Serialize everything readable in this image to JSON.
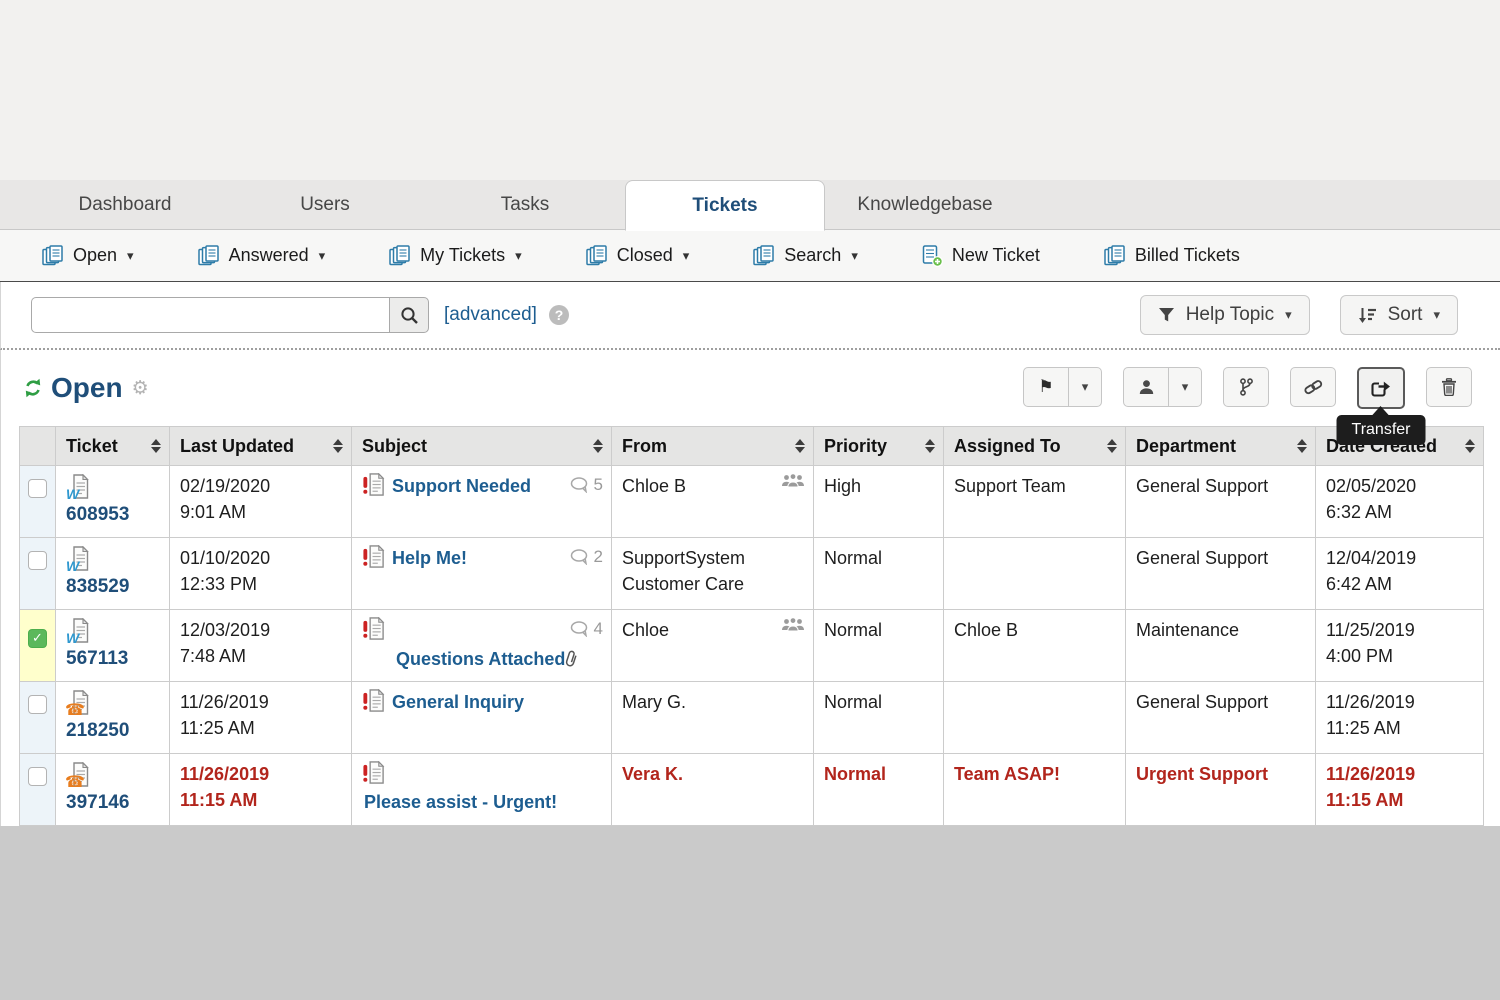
{
  "tabs": [
    {
      "label": "Dashboard",
      "active": false
    },
    {
      "label": "Users",
      "active": false
    },
    {
      "label": "Tasks",
      "active": false
    },
    {
      "label": "Tickets",
      "active": true
    },
    {
      "label": "Knowledgebase",
      "active": false
    }
  ],
  "nav": {
    "items": [
      {
        "label": "Open",
        "icon": "tickets-stack-icon",
        "dropdown": true
      },
      {
        "label": "Answered",
        "icon": "tickets-stack-icon",
        "dropdown": true
      },
      {
        "label": "My Tickets",
        "icon": "tickets-stack-icon",
        "dropdown": true
      },
      {
        "label": "Closed",
        "icon": "tickets-stack-icon",
        "dropdown": true
      },
      {
        "label": "Search",
        "icon": "tickets-stack-icon",
        "dropdown": true
      },
      {
        "label": "New Ticket",
        "icon": "new-ticket-icon",
        "dropdown": false
      },
      {
        "label": "Billed Tickets",
        "icon": "tickets-stack-icon",
        "dropdown": false
      }
    ]
  },
  "search": {
    "value": "",
    "placeholder": "",
    "advanced_label": "[advanced]",
    "help_icon": "?",
    "filter_button": "Help Topic",
    "sort_button": "Sort"
  },
  "view_header": {
    "title": "Open",
    "tooltip": "Transfer",
    "toolbar_icons": [
      "flag-icon",
      "person-icon",
      "merge-icon",
      "link-icon",
      "transfer-icon",
      "trash-icon"
    ]
  },
  "table": {
    "columns": [
      "Ticket",
      "Last Updated",
      "Subject",
      "From",
      "Priority",
      "Assigned To",
      "Department",
      "Date Created"
    ],
    "rows": [
      {
        "checked": false,
        "highlight": false,
        "id": "608953",
        "source": "web",
        "updated_date": "02/19/2020",
        "updated_time": "9:01 AM",
        "subject": "Support Needed",
        "thread_count": "5",
        "has_attachment": false,
        "subject_wraps": false,
        "from": "Chloe B",
        "from_is_group": true,
        "priority": "High",
        "assigned_to": "Support Team",
        "department": "General Support",
        "created_date": "02/05/2020",
        "created_time": "6:32 AM",
        "overdue": false
      },
      {
        "checked": false,
        "highlight": false,
        "id": "838529",
        "source": "web",
        "updated_date": "01/10/2020",
        "updated_time": "12:33 PM",
        "subject": "Help Me!",
        "thread_count": "2",
        "has_attachment": false,
        "subject_wraps": false,
        "from": "SupportSystem Customer Care",
        "from_is_group": false,
        "priority": "Normal",
        "assigned_to": "",
        "department": "General Support",
        "created_date": "12/04/2019",
        "created_time": "6:42 AM",
        "overdue": false
      },
      {
        "checked": true,
        "highlight": true,
        "id": "567113",
        "source": "web",
        "updated_date": "12/03/2019",
        "updated_time": "7:48 AM",
        "subject": "Questions Attached",
        "thread_count": "4",
        "has_attachment": true,
        "subject_wraps": true,
        "from": "Chloe",
        "from_is_group": true,
        "priority": "Normal",
        "assigned_to": "Chloe B",
        "department": "Maintenance",
        "created_date": "11/25/2019",
        "created_time": "4:00 PM",
        "overdue": false
      },
      {
        "checked": false,
        "highlight": false,
        "id": "218250",
        "source": "phone",
        "updated_date": "11/26/2019",
        "updated_time": "11:25 AM",
        "subject": "General Inquiry",
        "thread_count": "",
        "has_attachment": false,
        "subject_wraps": false,
        "from": "Mary G.",
        "from_is_group": false,
        "priority": "Normal",
        "assigned_to": "",
        "department": "General Support",
        "created_date": "11/26/2019",
        "created_time": "11:25 AM",
        "overdue": false
      },
      {
        "checked": false,
        "highlight": false,
        "id": "397146",
        "source": "phone",
        "updated_date": "11/26/2019",
        "updated_time": "11:15 AM",
        "subject": "Please assist - Urgent!",
        "thread_count": "",
        "has_attachment": false,
        "subject_wraps": true,
        "from": "Vera K.",
        "from_is_group": false,
        "priority": "Normal",
        "assigned_to": "Team ASAP!",
        "department": "Urgent Support",
        "created_date": "11/26/2019",
        "created_time": "11:15 AM",
        "overdue": true
      }
    ]
  },
  "colors": {
    "link_blue": "#1d5d90",
    "ticket_navy": "#1f4e79",
    "overdue_red": "#b2251c",
    "selected_green": "#5cb85c",
    "highlight_yellow": "#ffffcc",
    "nav_icon_teal": "#2e7ca8"
  }
}
